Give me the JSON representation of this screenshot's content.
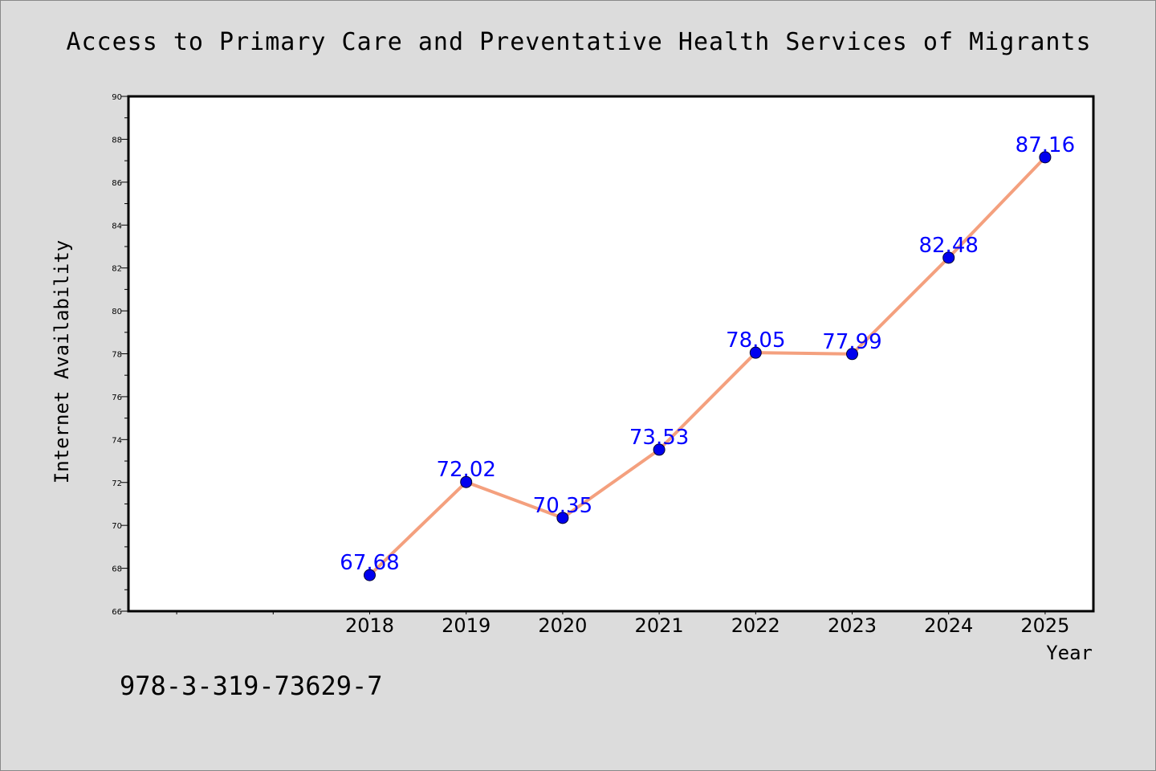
{
  "header": {
    "title": "Access to Primary Care and Preventative Health Services of Migrants"
  },
  "footer": {
    "code": "978-3-319-73629-7"
  },
  "chart_data": {
    "type": "line",
    "title": "Access to Primary Care and Preventative Health Services of Migrants",
    "xlabel": "Year",
    "ylabel": "Internet Availability",
    "x": [
      "2018",
      "2019",
      "2020",
      "2021",
      "2022",
      "2023",
      "2024",
      "2025"
    ],
    "series": [
      {
        "values": [
          67.68,
          72.02,
          70.35,
          73.53,
          78.05,
          77.99,
          82.48,
          87.16
        ],
        "data_labels": [
          "67.68",
          "72.02",
          "70.35",
          "73.53",
          "78.05",
          "77.99",
          "82.48",
          "87.16"
        ]
      }
    ],
    "ylim": [
      66,
      90
    ],
    "yticks": [
      "66",
      "68",
      "70",
      "72",
      "74",
      "76",
      "78",
      "80",
      "82",
      "84",
      "86",
      "88",
      "90"
    ],
    "grid": false,
    "legend": "none",
    "colors": {
      "line": "#f4a07e",
      "marker": "#0000ee",
      "label": "#0000ff",
      "background": "#dcdcdc",
      "plot_background": "#ffffff"
    }
  }
}
